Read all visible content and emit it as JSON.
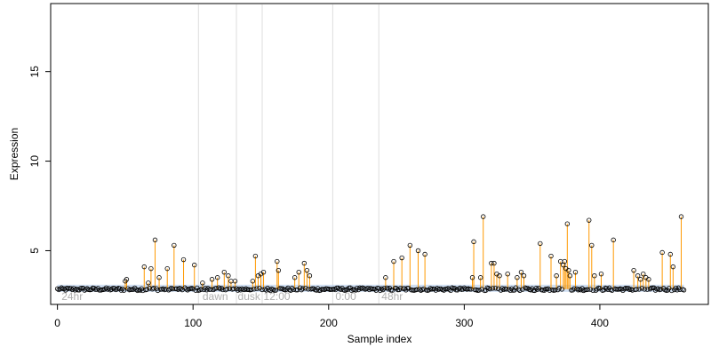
{
  "chart_data": {
    "type": "scatter",
    "title": "",
    "xlabel": "Sample index",
    "ylabel": "Expression",
    "xlim": [
      -5,
      480
    ],
    "ylim": [
      2.0,
      18.8
    ],
    "x_ticks": [
      0,
      100,
      200,
      300,
      400
    ],
    "y_ticks": [
      5,
      10,
      15
    ],
    "baseline": 2.85,
    "grid": false,
    "legend": "none",
    "colors": {
      "spike": "#ff9900",
      "band": "#a9c4e8",
      "point_stroke": "#000000",
      "divider": "#dddddd",
      "phase_text": "#b0b0b0"
    },
    "phase_dividers": [
      104,
      132,
      151,
      203,
      237
    ],
    "phase_labels": [
      {
        "text": "24hr",
        "x": 3
      },
      {
        "text": "dawn",
        "x": 107
      },
      {
        "text": "dusk",
        "x": 133
      },
      {
        "text": "12:00",
        "x": 152
      },
      {
        "text": "0:00",
        "x": 205
      },
      {
        "text": "48hr",
        "x": 239
      }
    ],
    "peaks": [
      {
        "x": 50,
        "y": 3.3
      },
      {
        "x": 51,
        "y": 3.4
      },
      {
        "x": 64,
        "y": 4.1
      },
      {
        "x": 67,
        "y": 3.2
      },
      {
        "x": 69,
        "y": 4.0
      },
      {
        "x": 72,
        "y": 5.6
      },
      {
        "x": 75,
        "y": 3.5
      },
      {
        "x": 81,
        "y": 4.0
      },
      {
        "x": 86,
        "y": 5.3
      },
      {
        "x": 93,
        "y": 4.5
      },
      {
        "x": 101,
        "y": 4.2
      },
      {
        "x": 107,
        "y": 3.2
      },
      {
        "x": 114,
        "y": 3.4
      },
      {
        "x": 118,
        "y": 3.5
      },
      {
        "x": 123,
        "y": 3.8
      },
      {
        "x": 126,
        "y": 3.6
      },
      {
        "x": 128,
        "y": 3.3
      },
      {
        "x": 131,
        "y": 3.3
      },
      {
        "x": 144,
        "y": 3.3
      },
      {
        "x": 146,
        "y": 4.7
      },
      {
        "x": 148,
        "y": 3.6
      },
      {
        "x": 150,
        "y": 3.7
      },
      {
        "x": 152,
        "y": 3.8
      },
      {
        "x": 162,
        "y": 4.4
      },
      {
        "x": 163,
        "y": 3.9
      },
      {
        "x": 175,
        "y": 3.5
      },
      {
        "x": 178,
        "y": 3.8
      },
      {
        "x": 182,
        "y": 4.3
      },
      {
        "x": 184,
        "y": 3.9
      },
      {
        "x": 186,
        "y": 3.6
      },
      {
        "x": 242,
        "y": 3.5
      },
      {
        "x": 248,
        "y": 4.4
      },
      {
        "x": 254,
        "y": 4.6
      },
      {
        "x": 260,
        "y": 5.3
      },
      {
        "x": 266,
        "y": 5.0
      },
      {
        "x": 271,
        "y": 4.8
      },
      {
        "x": 306,
        "y": 3.5
      },
      {
        "x": 307,
        "y": 5.5
      },
      {
        "x": 312,
        "y": 3.5
      },
      {
        "x": 314,
        "y": 6.9
      },
      {
        "x": 320,
        "y": 4.3
      },
      {
        "x": 322,
        "y": 4.3
      },
      {
        "x": 324,
        "y": 3.7
      },
      {
        "x": 326,
        "y": 3.6
      },
      {
        "x": 332,
        "y": 3.7
      },
      {
        "x": 339,
        "y": 3.5
      },
      {
        "x": 342,
        "y": 3.8
      },
      {
        "x": 344,
        "y": 3.6
      },
      {
        "x": 356,
        "y": 5.4
      },
      {
        "x": 364,
        "y": 4.7
      },
      {
        "x": 368,
        "y": 3.6
      },
      {
        "x": 371,
        "y": 4.4
      },
      {
        "x": 373,
        "y": 4.2
      },
      {
        "x": 374,
        "y": 4.4
      },
      {
        "x": 375,
        "y": 4.0
      },
      {
        "x": 376,
        "y": 6.5
      },
      {
        "x": 377,
        "y": 3.9
      },
      {
        "x": 378,
        "y": 3.6
      },
      {
        "x": 382,
        "y": 3.8
      },
      {
        "x": 392,
        "y": 6.7
      },
      {
        "x": 394,
        "y": 5.3
      },
      {
        "x": 396,
        "y": 3.6
      },
      {
        "x": 401,
        "y": 3.7
      },
      {
        "x": 410,
        "y": 5.6
      },
      {
        "x": 425,
        "y": 3.9
      },
      {
        "x": 428,
        "y": 3.6
      },
      {
        "x": 430,
        "y": 3.4
      },
      {
        "x": 432,
        "y": 3.7
      },
      {
        "x": 434,
        "y": 3.5
      },
      {
        "x": 436,
        "y": 3.4
      },
      {
        "x": 446,
        "y": 4.9
      },
      {
        "x": 452,
        "y": 4.8
      },
      {
        "x": 454,
        "y": 4.1
      },
      {
        "x": 460,
        "y": 6.9
      }
    ]
  }
}
